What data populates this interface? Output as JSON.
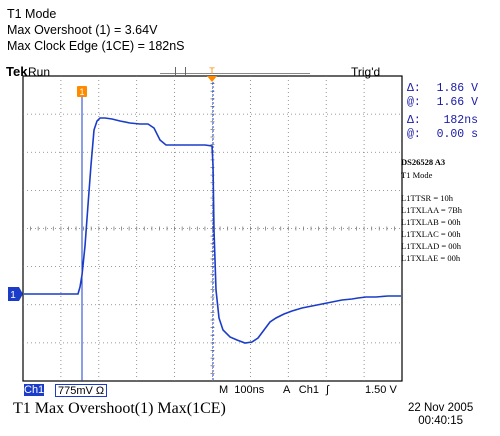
{
  "header": {
    "line1": "T1 Mode",
    "line2": "Max Overshoot (1) = 3.64V",
    "line3": "Max Clock Edge (1CE) = 182nS"
  },
  "scope": {
    "brand": "Tek",
    "run_state": "Run",
    "trigger_state": "Trig'd",
    "channel_marker": "1",
    "cursor_marker": "1",
    "trigger_marker": "T",
    "trace_color": "#1a3cc8"
  },
  "readouts": {
    "delta_v_label": "Δ:",
    "delta_v": "1.86 V",
    "at_v_label": "@:",
    "at_v": "1.66 V",
    "delta_t_label": "Δ:",
    "delta_t": "182ns",
    "at_t_label": "@:",
    "at_t": "0.00 s"
  },
  "notes": {
    "device": "DS26528  A3",
    "mode": "T1 Mode",
    "registers": [
      "L1TTSR = 10h",
      "L1TXLAA = 7Bh",
      "L1TXLAB = 00h",
      "L1TXLAC = 00h",
      "L1TXLAD = 00h",
      "L1TXLAE = 00h"
    ]
  },
  "status_bar": {
    "channel": "Ch1",
    "volts_per_div": "775mV Ω",
    "time_label": "M",
    "time_per_div": "100ns",
    "trigger_source_label": "A",
    "trigger_channel": "Ch1",
    "trigger_slope": "∫",
    "trigger_level": "1.50 V"
  },
  "caption": {
    "title": "T1 Max Overshoot(1)  Max(1CE)",
    "date": "22 Nov 2005",
    "time": "00:40:15"
  }
}
